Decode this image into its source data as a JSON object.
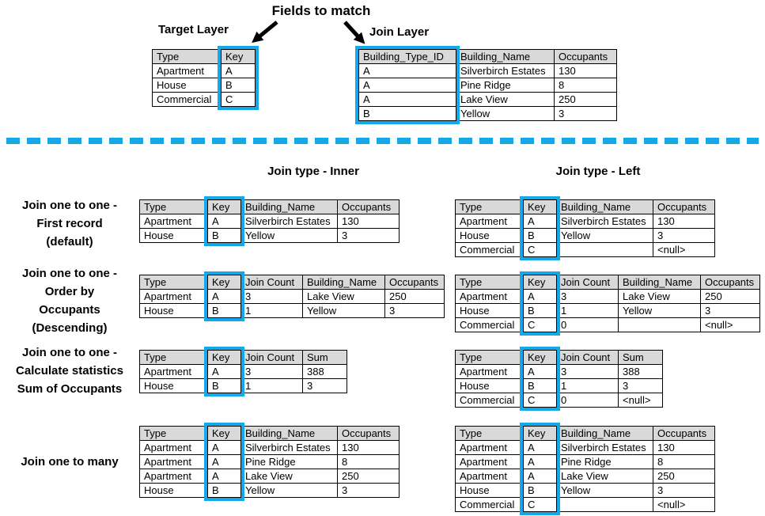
{
  "colors": {
    "highlight": "#16a8e6",
    "divider": "#16a8e6",
    "table_header_bg": "#d9d9d9",
    "table_border": "#000000"
  },
  "top": {
    "fields_to_match_label": "Fields to match",
    "target": {
      "title": "Target Layer",
      "headers": [
        "Type",
        "Key"
      ],
      "key_col": 1,
      "rows": [
        [
          "Apartment",
          "A"
        ],
        [
          "House",
          "B"
        ],
        [
          "Commercial",
          "C"
        ]
      ]
    },
    "join": {
      "title": "Join Layer",
      "headers": [
        "Building_Type_ID",
        "Building_Name",
        "Occupants"
      ],
      "key_col": 0,
      "rows": [
        [
          "A",
          "Silverbirch Estates",
          "130"
        ],
        [
          "A",
          "Pine Ridge",
          "8"
        ],
        [
          "A",
          "Lake View",
          "250"
        ],
        [
          "B",
          "Yellow",
          "3"
        ]
      ]
    }
  },
  "join_type_headers": {
    "inner": "Join type - Inner",
    "left": "Join type - Left"
  },
  "examples": [
    {
      "label_lines": [
        "Join one to one -",
        "First record",
        "(default)"
      ],
      "inner": {
        "headers": [
          "Type",
          "Key",
          "Building_Name",
          "Occupants"
        ],
        "key_col": 1,
        "rows": [
          [
            "Apartment",
            "A",
            "Silverbirch Estates",
            "130"
          ],
          [
            "House",
            "B",
            "Yellow",
            "3"
          ]
        ]
      },
      "left": {
        "headers": [
          "Type",
          "Key",
          "Building_Name",
          "Occupants"
        ],
        "key_col": 1,
        "rows": [
          [
            "Apartment",
            "A",
            "Silverbirch Estates",
            "130"
          ],
          [
            "House",
            "B",
            "Yellow",
            "3"
          ],
          [
            "Commercial",
            "C",
            "",
            "<null>"
          ]
        ]
      }
    },
    {
      "label_lines": [
        "Join one to one -",
        "Order by",
        "Occupants",
        "(Descending)"
      ],
      "inner": {
        "headers": [
          "Type",
          "Key",
          "Join Count",
          "Building_Name",
          "Occupants"
        ],
        "key_col": 1,
        "rows": [
          [
            "Apartment",
            "A",
            "3",
            "Lake View",
            "250"
          ],
          [
            "House",
            "B",
            "1",
            "Yellow",
            "3"
          ]
        ]
      },
      "left": {
        "headers": [
          "Type",
          "Key",
          "Join Count",
          "Building_Name",
          "Occupants"
        ],
        "key_col": 1,
        "rows": [
          [
            "Apartment",
            "A",
            "3",
            "Lake View",
            "250"
          ],
          [
            "House",
            "B",
            "1",
            "Yellow",
            "3"
          ],
          [
            "Commercial",
            "C",
            "0",
            "",
            "<null>"
          ]
        ]
      }
    },
    {
      "label_lines": [
        "Join one to one -",
        "Calculate statistics",
        "Sum of Occupants"
      ],
      "inner": {
        "headers": [
          "Type",
          "Key",
          "Join Count",
          "Sum"
        ],
        "key_col": 1,
        "rows": [
          [
            "Apartment",
            "A",
            "3",
            "388"
          ],
          [
            "House",
            "B",
            "1",
            "3"
          ]
        ]
      },
      "left": {
        "headers": [
          "Type",
          "Key",
          "Join Count",
          "Sum"
        ],
        "key_col": 1,
        "rows": [
          [
            "Apartment",
            "A",
            "3",
            "388"
          ],
          [
            "House",
            "B",
            "1",
            "3"
          ],
          [
            "Commercial",
            "C",
            "0",
            "<null>"
          ]
        ]
      }
    },
    {
      "label_lines": [
        "Join one to many"
      ],
      "inner": {
        "headers": [
          "Type",
          "Key",
          "Building_Name",
          "Occupants"
        ],
        "key_col": 1,
        "rows": [
          [
            "Apartment",
            "A",
            "Silverbirch Estates",
            "130"
          ],
          [
            "Apartment",
            "A",
            "Pine Ridge",
            "8"
          ],
          [
            "Apartment",
            "A",
            "Lake View",
            "250"
          ],
          [
            "House",
            "B",
            "Yellow",
            "3"
          ]
        ]
      },
      "left": {
        "headers": [
          "Type",
          "Key",
          "Building_Name",
          "Occupants"
        ],
        "key_col": 1,
        "rows": [
          [
            "Apartment",
            "A",
            "Silverbirch Estates",
            "130"
          ],
          [
            "Apartment",
            "A",
            "Pine Ridge",
            "8"
          ],
          [
            "Apartment",
            "A",
            "Lake View",
            "250"
          ],
          [
            "House",
            "B",
            "Yellow",
            "3"
          ],
          [
            "Commercial",
            "C",
            "",
            "<null>"
          ]
        ]
      }
    }
  ]
}
